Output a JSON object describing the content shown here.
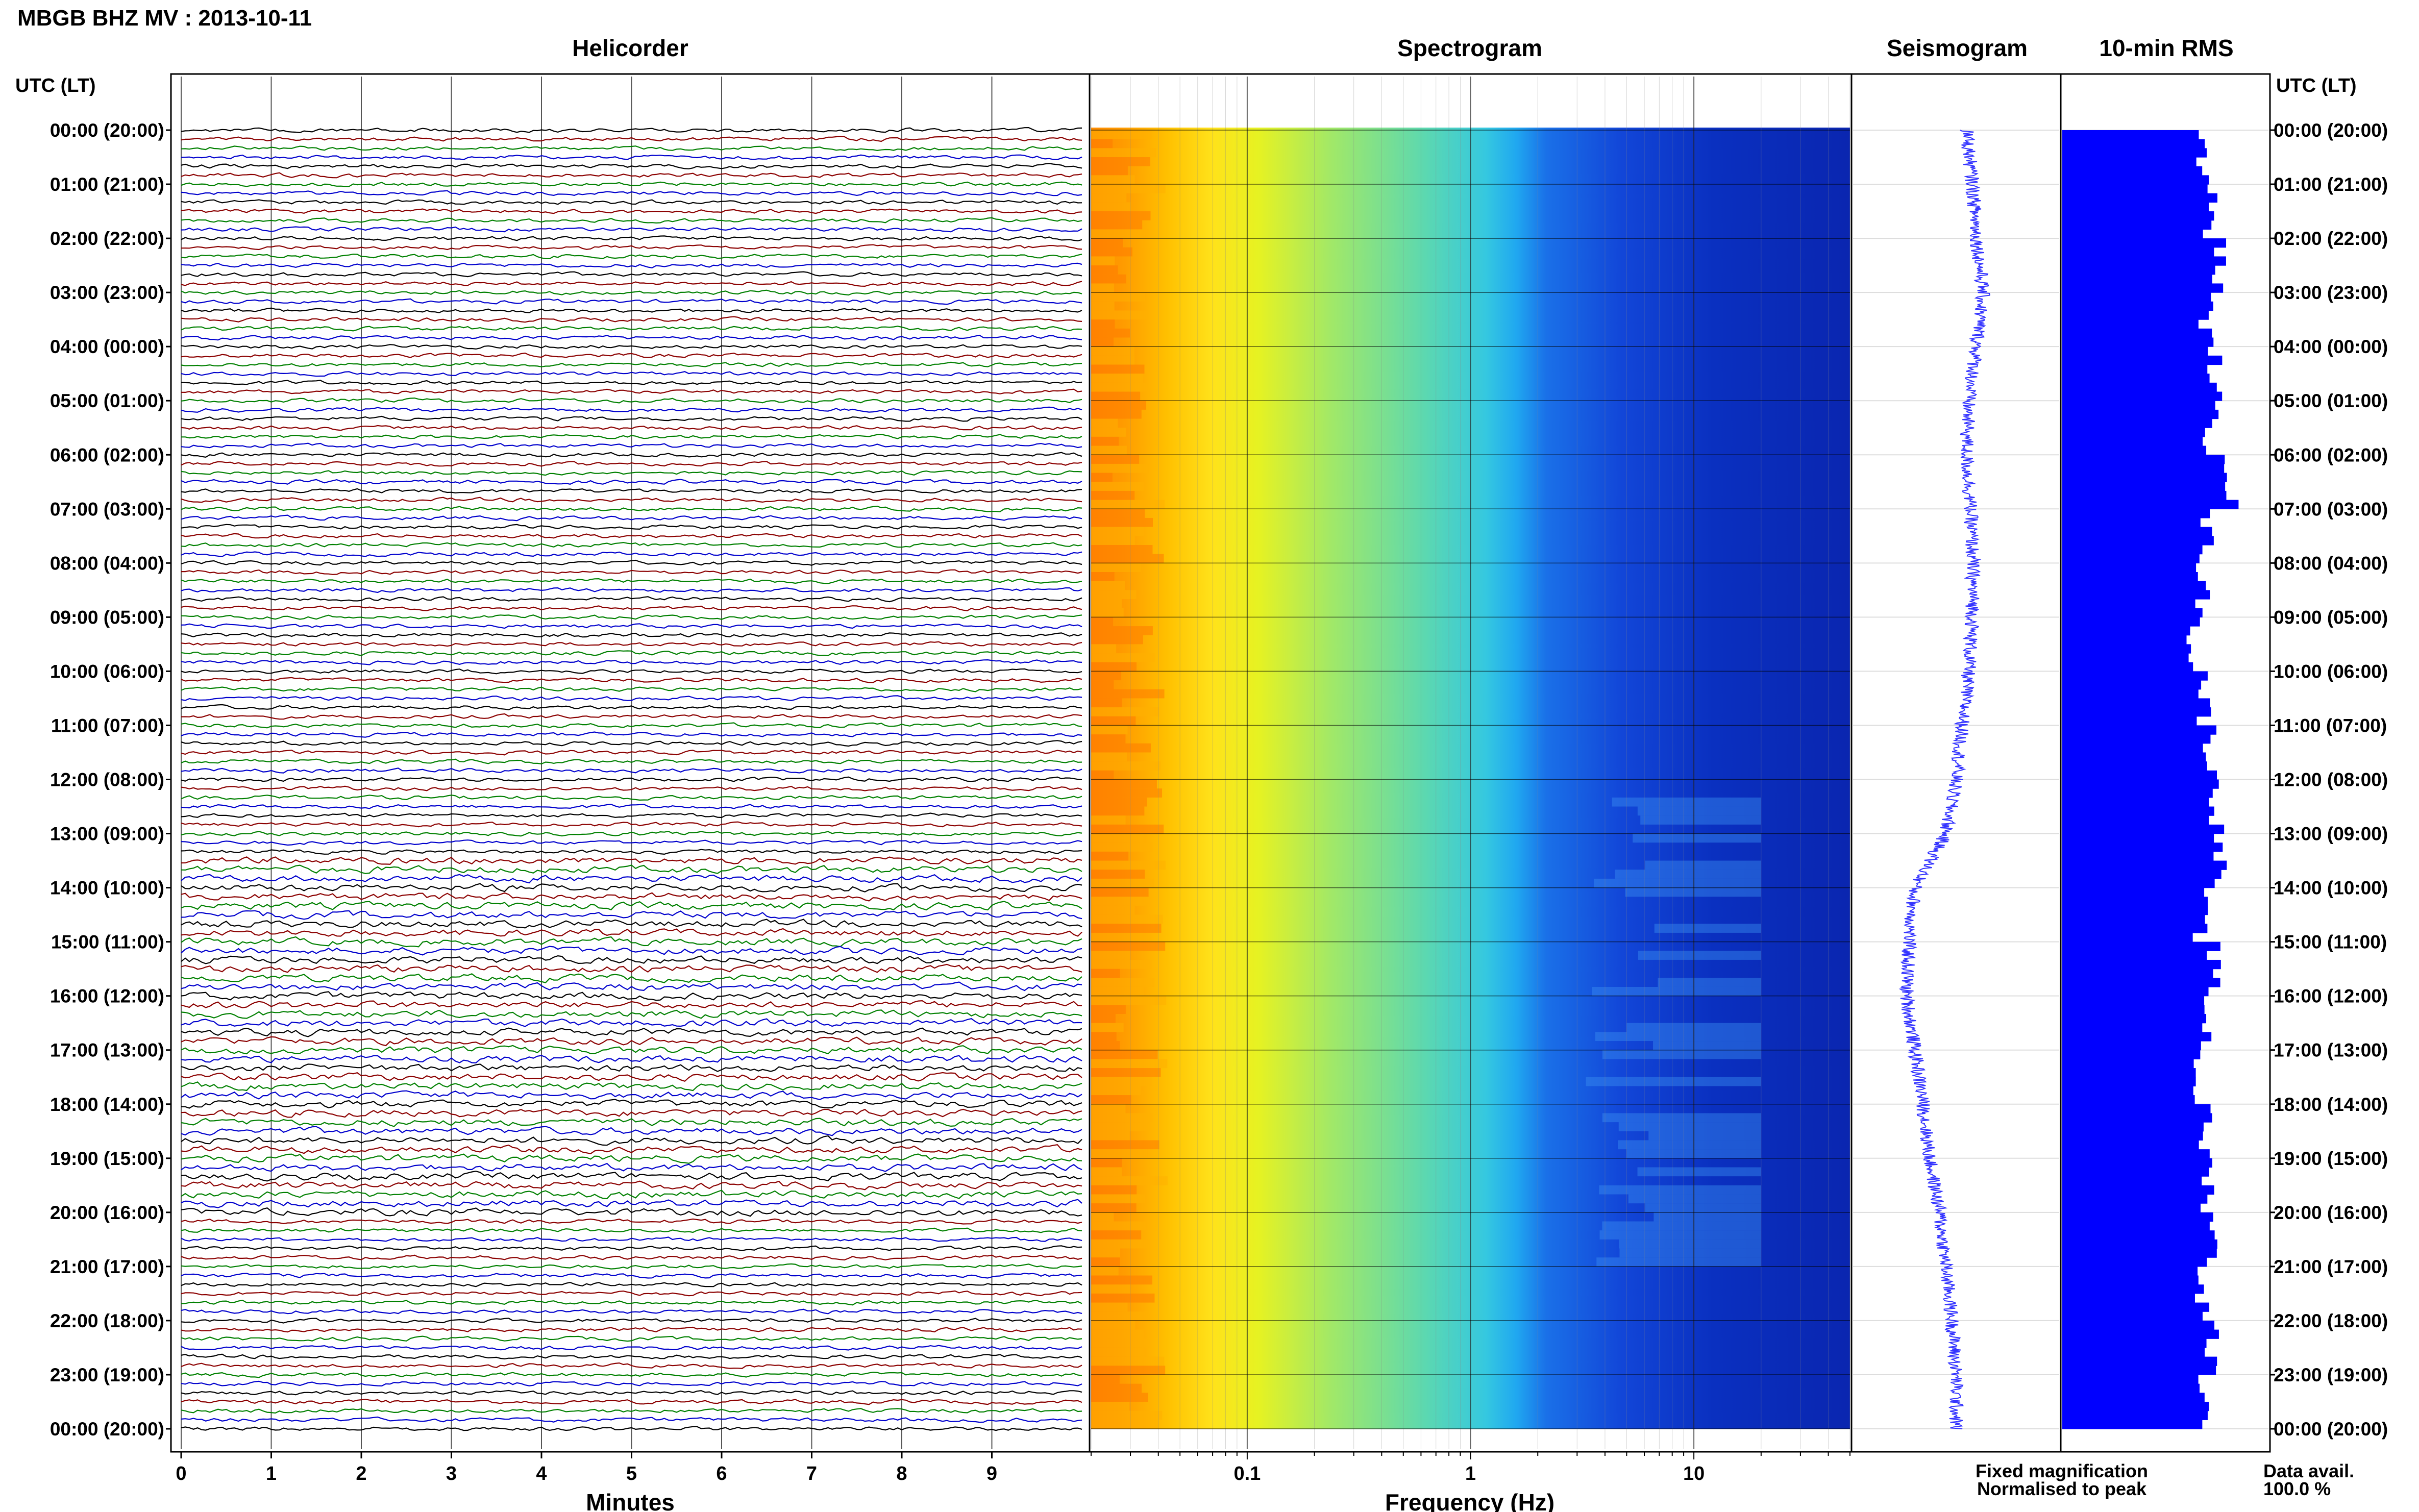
{
  "page_title": "MBGB BHZ MV : 2013-10-11",
  "panel_titles": {
    "helicorder": "Helicorder",
    "spectrogram": "Spectrogram",
    "seismogram": "Seismogram",
    "rms": "10-min RMS"
  },
  "time_axis_title": "UTC (LT)",
  "time_labels": [
    "00:00 (20:00)",
    "01:00 (21:00)",
    "02:00 (22:00)",
    "03:00 (23:00)",
    "04:00 (00:00)",
    "05:00 (01:00)",
    "06:00 (02:00)",
    "07:00 (03:00)",
    "08:00 (04:00)",
    "09:00 (05:00)",
    "10:00 (06:00)",
    "11:00 (07:00)",
    "12:00 (08:00)",
    "13:00 (09:00)",
    "14:00 (10:00)",
    "15:00 (11:00)",
    "16:00 (12:00)",
    "17:00 (13:00)",
    "18:00 (14:00)",
    "19:00 (15:00)",
    "20:00 (16:00)",
    "21:00 (17:00)",
    "22:00 (18:00)",
    "23:00 (19:00)",
    "00:00 (20:00)"
  ],
  "helicorder_axis": {
    "title": "Minutes",
    "ticks": [
      "0",
      "1",
      "2",
      "3",
      "4",
      "5",
      "6",
      "7",
      "8",
      "9"
    ]
  },
  "spectrogram_axis": {
    "title": "Frequency (Hz)",
    "ticks": [
      "0.1",
      "1",
      "10"
    ],
    "scale": "log"
  },
  "legend": {
    "fixed": {
      "text": "Fixed magnification",
      "color": "#0000ff"
    },
    "normalised": {
      "text": "Normalised to peak",
      "color": "#ff0000"
    }
  },
  "data_avail": {
    "label": "Data avail.",
    "value": "100.0 %"
  },
  "colors": {
    "trace_cycle": [
      "#000000",
      "#8b0000",
      "#008000",
      "#0000cd"
    ],
    "rms_bars": "#0000ff",
    "seismogram": "#3333ff"
  },
  "chart_data": [
    {
      "type": "line",
      "name": "helicorder",
      "x_unit": "minutes",
      "xlim": [
        0,
        10
      ],
      "rows_per_hour": 6,
      "row_minutes": 10,
      "hours": 24,
      "noise_level": "low, with higher activity from about 13:30 to 20:00 UTC"
    },
    {
      "type": "heatmap",
      "name": "spectrogram",
      "x_scale": "log",
      "xlim": [
        0.02,
        50
      ],
      "colormap": "jet",
      "high_energy_band": "below about 0.1 Hz",
      "hf_activity_window": "about 12:00 to 21:00 UTC at 3-20 Hz"
    },
    {
      "type": "line",
      "name": "seismogram",
      "hours": 24,
      "envelope_center_relative": [
        0.55,
        0.58,
        0.6,
        0.63,
        0.6,
        0.56,
        0.55,
        0.57,
        0.58,
        0.58,
        0.56,
        0.53,
        0.5,
        0.45,
        0.3,
        0.27,
        0.26,
        0.3,
        0.34,
        0.37,
        0.42,
        0.45,
        0.48,
        0.5,
        0.5
      ]
    },
    {
      "type": "bar",
      "name": "10-min RMS",
      "orientation": "horizontal",
      "values_relative_per_hour": [
        0.68,
        0.72,
        0.76,
        0.7,
        0.74,
        0.72,
        0.82,
        0.7,
        0.68,
        0.64,
        0.69,
        0.72,
        0.75,
        0.76,
        0.67,
        0.73,
        0.7,
        0.66,
        0.69,
        0.71,
        0.73,
        0.68,
        0.73,
        0.69
      ]
    }
  ]
}
